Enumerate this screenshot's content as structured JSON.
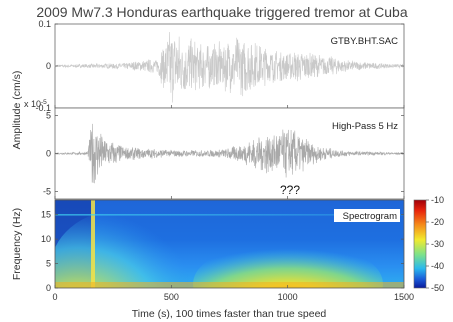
{
  "chart_data": {
    "title": "2009 Mw7.3 Honduras earthquake triggered tremor at Cuba",
    "xlabel": "Time (s), 100 times faster than true speed",
    "xlim": [
      0,
      1500
    ],
    "xticks": [
      "0",
      "500",
      "1000",
      "1500"
    ],
    "xtick_values": [
      0,
      500,
      1000,
      1500
    ],
    "panels": [
      {
        "type": "line",
        "label": "GTBY.BHT.SAC",
        "ylim": [
          -0.1,
          0.1
        ],
        "yticks": [
          "0.1",
          "0",
          "-0.1"
        ],
        "ytick_values": [
          0.1,
          0,
          -0.1
        ],
        "scale_note": "x 10",
        "scale_exp": "-5",
        "color": "#c9c9c9",
        "envelope": {
          "x": [
            0,
            150,
            300,
            440,
            470,
            500,
            550,
            600,
            650,
            700,
            750,
            800,
            850,
            900,
            950,
            1000,
            1050,
            1100,
            1150,
            1200,
            1250,
            1300,
            1350,
            1400,
            1450,
            1500
          ],
          "amp": [
            0.003,
            0.005,
            0.008,
            0.02,
            0.06,
            0.1,
            0.07,
            0.065,
            0.055,
            0.06,
            0.065,
            0.075,
            0.065,
            0.05,
            0.04,
            0.035,
            0.04,
            0.032,
            0.028,
            0.022,
            0.015,
            0.012,
            0.009,
            0.007,
            0.005,
            0.004
          ]
        }
      },
      {
        "type": "line",
        "label": "High-Pass 5 Hz",
        "ylim": [
          -6,
          6
        ],
        "yticks": [
          "5",
          "0",
          "-5"
        ],
        "ytick_values": [
          5,
          0,
          -5
        ],
        "color": "#a9a9a9",
        "envelope": {
          "x": [
            0,
            140,
            160,
            180,
            220,
            300,
            400,
            500,
            600,
            700,
            800,
            850,
            900,
            950,
            1000,
            1050,
            1100,
            1150,
            1200,
            1250,
            1300,
            1400,
            1500
          ],
          "amp": [
            0.1,
            0.2,
            5.0,
            3.5,
            2.0,
            1.0,
            0.7,
            0.5,
            0.45,
            0.5,
            1.2,
            2.0,
            2.8,
            3.0,
            3.6,
            2.8,
            1.6,
            1.0,
            0.6,
            0.4,
            0.3,
            0.2,
            0.15
          ]
        }
      },
      {
        "type": "heatmap",
        "label": "Spectrogram",
        "ylabel": "Frequency (Hz)",
        "ylim": [
          0,
          18
        ],
        "yticks": [
          "15",
          "10",
          "5",
          "0"
        ],
        "ytick_values": [
          15,
          10,
          5,
          0
        ],
        "colorbar": {
          "range": [
            -50,
            -10
          ],
          "ticks": [
            "-10",
            "-20",
            "-30",
            "-40",
            "-50"
          ],
          "tick_values": [
            -10,
            -20,
            -30,
            -40,
            -50
          ]
        },
        "description_values": {
          "background_db": -42,
          "onset_time": 160,
          "tremor_center_time": 1000,
          "tremor_peak_db": -12
        }
      }
    ],
    "shared_ylabel": "Amplitude (cm/s)",
    "annotation": "???"
  }
}
